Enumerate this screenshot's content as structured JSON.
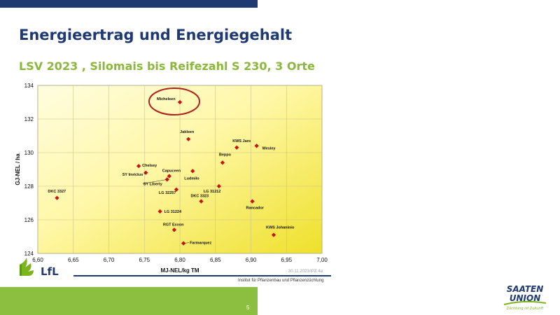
{
  "slide": {
    "title": "Energieertrag und Energiegehalt",
    "subtitle": "LSV 2023 , Silomais bis Reifezahl S 230, 3 Orte",
    "page_number": "5",
    "date": "30.11.2023/IPZ 4a",
    "institute": "Institut für Pflanzenbau und Pflanzenzüchtung",
    "logos": {
      "lfl_text": "LfL",
      "saaten_line1": "SAATEN",
      "saaten_line2": "UNION",
      "saaten_tagline": "Züchtung ist Zukunft"
    }
  },
  "colors": {
    "title": "#1f3a73",
    "subtitle": "#8bb83a",
    "marker": "#cc1111",
    "highlight_circle": "#b02020",
    "bottom_bar": "#8cbf3f",
    "top_bar": "#1f3a73"
  },
  "chart_data": {
    "type": "scatter",
    "xlabel": "MJ-NEL/kg TM",
    "ylabel": "GJ-NEL / ha",
    "xlim": [
      6.6,
      7.0
    ],
    "ylim": [
      124,
      134
    ],
    "x_ticks": [
      "6,60",
      "6,65",
      "6,70",
      "6,75",
      "6,80",
      "6,85",
      "6,90",
      "6,95",
      "7,00"
    ],
    "y_ticks": [
      "124",
      "126",
      "128",
      "130",
      "132",
      "134"
    ],
    "grid": true,
    "highlighted": "Micheleen",
    "points": [
      {
        "name": "Micheleen",
        "x": 6.8,
        "y": 133.0
      },
      {
        "name": "Jakleen",
        "x": 6.812,
        "y": 130.8
      },
      {
        "name": "KWS Jaro",
        "x": 6.88,
        "y": 130.3
      },
      {
        "name": "Wesley",
        "x": 6.908,
        "y": 130.4
      },
      {
        "name": "Beppo",
        "x": 6.86,
        "y": 129.4
      },
      {
        "name": "Chelsey",
        "x": 6.742,
        "y": 129.2
      },
      {
        "name": "SY Invictus",
        "x": 6.752,
        "y": 128.8
      },
      {
        "name": "Capuceen",
        "x": 6.785,
        "y": 128.6
      },
      {
        "name": "SY Liberty",
        "x": 6.782,
        "y": 128.4
      },
      {
        "name": "Ludmilo",
        "x": 6.818,
        "y": 128.9
      },
      {
        "name": "LG 31212",
        "x": 6.855,
        "y": 128.0
      },
      {
        "name": "LG 32257",
        "x": 6.795,
        "y": 127.8
      },
      {
        "name": "DKC 3323",
        "x": 6.83,
        "y": 127.1
      },
      {
        "name": "DKC 3327",
        "x": 6.627,
        "y": 127.3
      },
      {
        "name": "Rancador",
        "x": 6.902,
        "y": 127.1
      },
      {
        "name": "LG 31224",
        "x": 6.772,
        "y": 126.5
      },
      {
        "name": "RGT Exxon",
        "x": 6.792,
        "y": 125.4
      },
      {
        "name": "KWS Johaninio",
        "x": 6.932,
        "y": 125.1
      },
      {
        "name": "Farmarquez",
        "x": 6.805,
        "y": 124.6
      }
    ]
  }
}
